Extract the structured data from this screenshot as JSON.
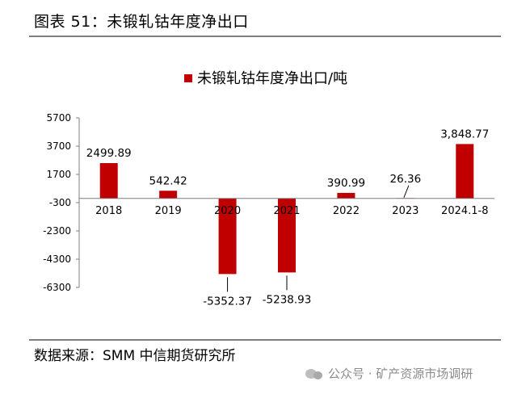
{
  "figure_title": "图表 51：未锻轧钴年度净出口",
  "source": "数据来源：SMM 中信期货研究所",
  "watermark": "公众号 · 矿产资源市场调研",
  "colors": {
    "bar": "#c00000",
    "axis": "#7f7f7f",
    "text": "#000000"
  },
  "chart_data": {
    "type": "bar",
    "title": "",
    "legend": {
      "position": "top-center"
    },
    "series": [
      {
        "name": "未锻轧钴年度净出口/吨",
        "values": [
          2499.89,
          542.42,
          -5352.37,
          -5238.93,
          390.99,
          26.36,
          3848.77
        ]
      }
    ],
    "categories": [
      "2018",
      "2019",
      "2020",
      "2021",
      "2022",
      "2023",
      "2024.1-8"
    ],
    "data_labels": [
      "2499.89",
      "542.42",
      "-5352.37",
      "-5238.93",
      "390.99",
      "26.36",
      "3,848.77"
    ],
    "yticks": [
      "5700",
      "3700",
      "1700",
      "-300",
      "-2300",
      "-4300",
      "-6300"
    ],
    "ylim": [
      -6300,
      5700
    ],
    "xlabel": "",
    "ylabel": "",
    "grid": false
  }
}
